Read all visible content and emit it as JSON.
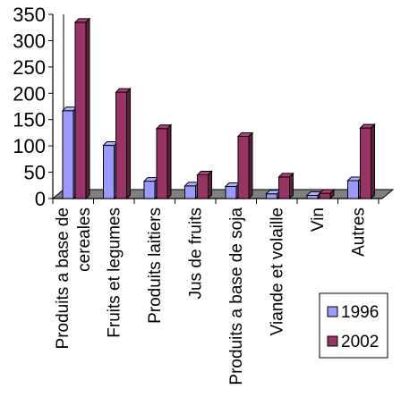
{
  "chart_data": {
    "type": "bar",
    "three_d": true,
    "title": "",
    "xlabel": "",
    "ylabel": "",
    "ylim": [
      0,
      350
    ],
    "yticks": [
      "0",
      "50",
      "100",
      "150",
      "200",
      "250",
      "300",
      "350"
    ],
    "grid": false,
    "legend_position": "bottom-right",
    "categories": [
      "Produits a base de cereales",
      "Fruits et legumes",
      "Produits laitiers",
      "Jus de fruits",
      "Produits a base de soja",
      "Viande et volaille",
      "Vin",
      "Autres"
    ],
    "series": [
      {
        "name": "1996",
        "color": "#9999ff",
        "values": [
          167,
          101,
          33,
          24,
          23,
          9,
          6,
          34
        ]
      },
      {
        "name": "2002",
        "color": "#993366",
        "values": [
          335,
          202,
          133,
          45,
          118,
          41,
          10,
          134
        ]
      }
    ],
    "floor_color": "#808080"
  }
}
